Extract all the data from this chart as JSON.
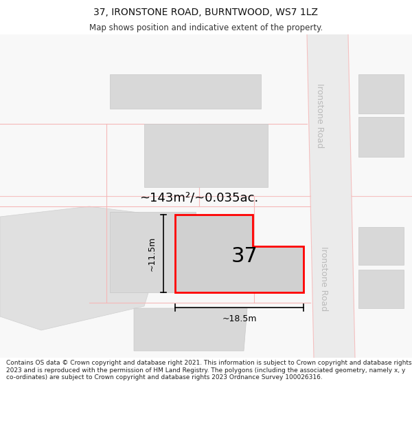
{
  "title": "37, IRONSTONE ROAD, BURNTWOOD, WS7 1LZ",
  "subtitle": "Map shows position and indicative extent of the property.",
  "footer": "Contains OS data © Crown copyright and database right 2021. This information is subject to Crown copyright and database rights 2023 and is reproduced with the permission of HM Land Registry. The polygons (including the associated geometry, namely x, y co-ordinates) are subject to Crown copyright and database rights 2023 Ordnance Survey 100026316.",
  "area_label": "~143m²/~0.035ac.",
  "width_label": "~18.5m",
  "height_label": "~11.5m",
  "plot_number": "37",
  "road_label_top": "Ironstone Road",
  "road_label_bottom": "Ironstone Road",
  "map_bg": "#f5f5f5",
  "road_fill": "#ebebeb",
  "road_edge": "#f5c0c0",
  "building_fill": "#d8d8d8",
  "building_edge": "#c8c8c8",
  "plot_fill": "#d0d0d0",
  "plot_stroke": "#ff0000",
  "parcel_line": "#f5b8b8",
  "title_fontsize": 10,
  "subtitle_fontsize": 8.5,
  "footer_fontsize": 6.5,
  "area_fontsize": 13,
  "label_fontsize": 9,
  "number_fontsize": 22,
  "road_text_color": "#bbbbbb",
  "road_text_size": 9
}
